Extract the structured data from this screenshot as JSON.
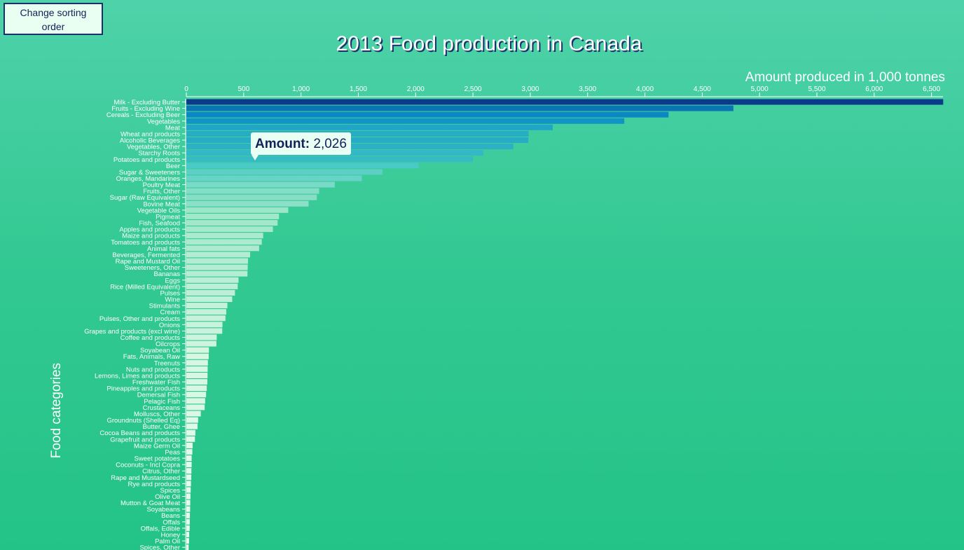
{
  "controls": {
    "sort_button_label": "Change sorting order"
  },
  "tooltip": {
    "label": "Amount:",
    "value": "2,026"
  },
  "chart_data": {
    "type": "bar",
    "orientation": "horizontal",
    "title": "2013 Food production in Canada",
    "xlabel": "Amount produced in 1,000 tonnes",
    "ylabel": "Food categories",
    "xlim": [
      0,
      6600
    ],
    "xticks": [
      0,
      500,
      1000,
      1500,
      2000,
      2500,
      3000,
      3500,
      4000,
      4500,
      5000,
      5500,
      6000,
      6500
    ],
    "xtick_labels": [
      "0",
      "500",
      "1,000",
      "1,500",
      "2,000",
      "2,500",
      "3,000",
      "3,500",
      "4,000",
      "4,500",
      "5,000",
      "5,500",
      "6,000",
      "6,500"
    ],
    "grid": false,
    "color_scale": [
      "#0c3a8a",
      "#0b8fc6",
      "#43c8c6",
      "#9ee6c8",
      "#d8f7e2",
      "#f2fff7"
    ],
    "categories": [
      "Milk - Excluding Butter",
      "Fruits - Excluding Wine",
      "Cereals - Excluding Beer",
      "Vegetables",
      "Meat",
      "Wheat and products",
      "Alcoholic Beverages",
      "Vegetables, Other",
      "Starchy Roots",
      "Potatoes and products",
      "Beer",
      "Sugar & Sweeteners",
      "Oranges, Mandarines",
      "Poultry Meat",
      "Fruits, Other",
      "Sugar (Raw Equivalent)",
      "Bovine Meat",
      "Vegetable Oils",
      "Pigmeat",
      "Fish, Seafood",
      "Apples and products",
      "Maize and products",
      "Tomatoes and products",
      "Animal fats",
      "Beverages, Fermented",
      "Rape and Mustard Oil",
      "Sweeteners, Other",
      "Bananas",
      "Eggs",
      "Rice (Milled Equivalent)",
      "Pulses",
      "Wine",
      "Stimulants",
      "Cream",
      "Pulses, Other and products",
      "Onions",
      "Grapes and products (excl wine)",
      "Coffee and products",
      "Oilcrops",
      "Soyabean Oil",
      "Fats, Animals, Raw",
      "Treenuts",
      "Nuts and products",
      "Lemons, Limes and products",
      "Freshwater Fish",
      "Pineapples and products",
      "Demersal Fish",
      "Pelagic Fish",
      "Crustaceans",
      "Molluscs, Other",
      "Groundnuts (Shelled Eq)",
      "Butter, Ghee",
      "Cocoa Beans and products",
      "Grapefruit and products",
      "Maize Germ Oil",
      "Peas",
      "Sweet potatoes",
      "Coconuts - Incl Copra",
      "Citrus, Other",
      "Rape and Mustardseed",
      "Rye and products",
      "Spices",
      "Olive Oil",
      "Mutton & Goat Meat",
      "Soyabeans",
      "Beans",
      "Offals",
      "Offals, Edible",
      "Honey",
      "Palm Oil",
      "Spices, Other"
    ],
    "values": [
      6602,
      4772,
      4206,
      3820,
      3196,
      2985,
      2983,
      2852,
      2590,
      2500,
      2026,
      1710,
      1530,
      1295,
      1158,
      1138,
      1066,
      889,
      808,
      796,
      755,
      670,
      658,
      635,
      556,
      538,
      535,
      533,
      455,
      448,
      424,
      400,
      358,
      348,
      341,
      315,
      313,
      265,
      262,
      197,
      195,
      188,
      186,
      185,
      183,
      178,
      172,
      164,
      160,
      126,
      103,
      98,
      79,
      75,
      55,
      52,
      46,
      46,
      44,
      43,
      40,
      38,
      36,
      34,
      33,
      31,
      30,
      29,
      25,
      24,
      20
    ]
  }
}
